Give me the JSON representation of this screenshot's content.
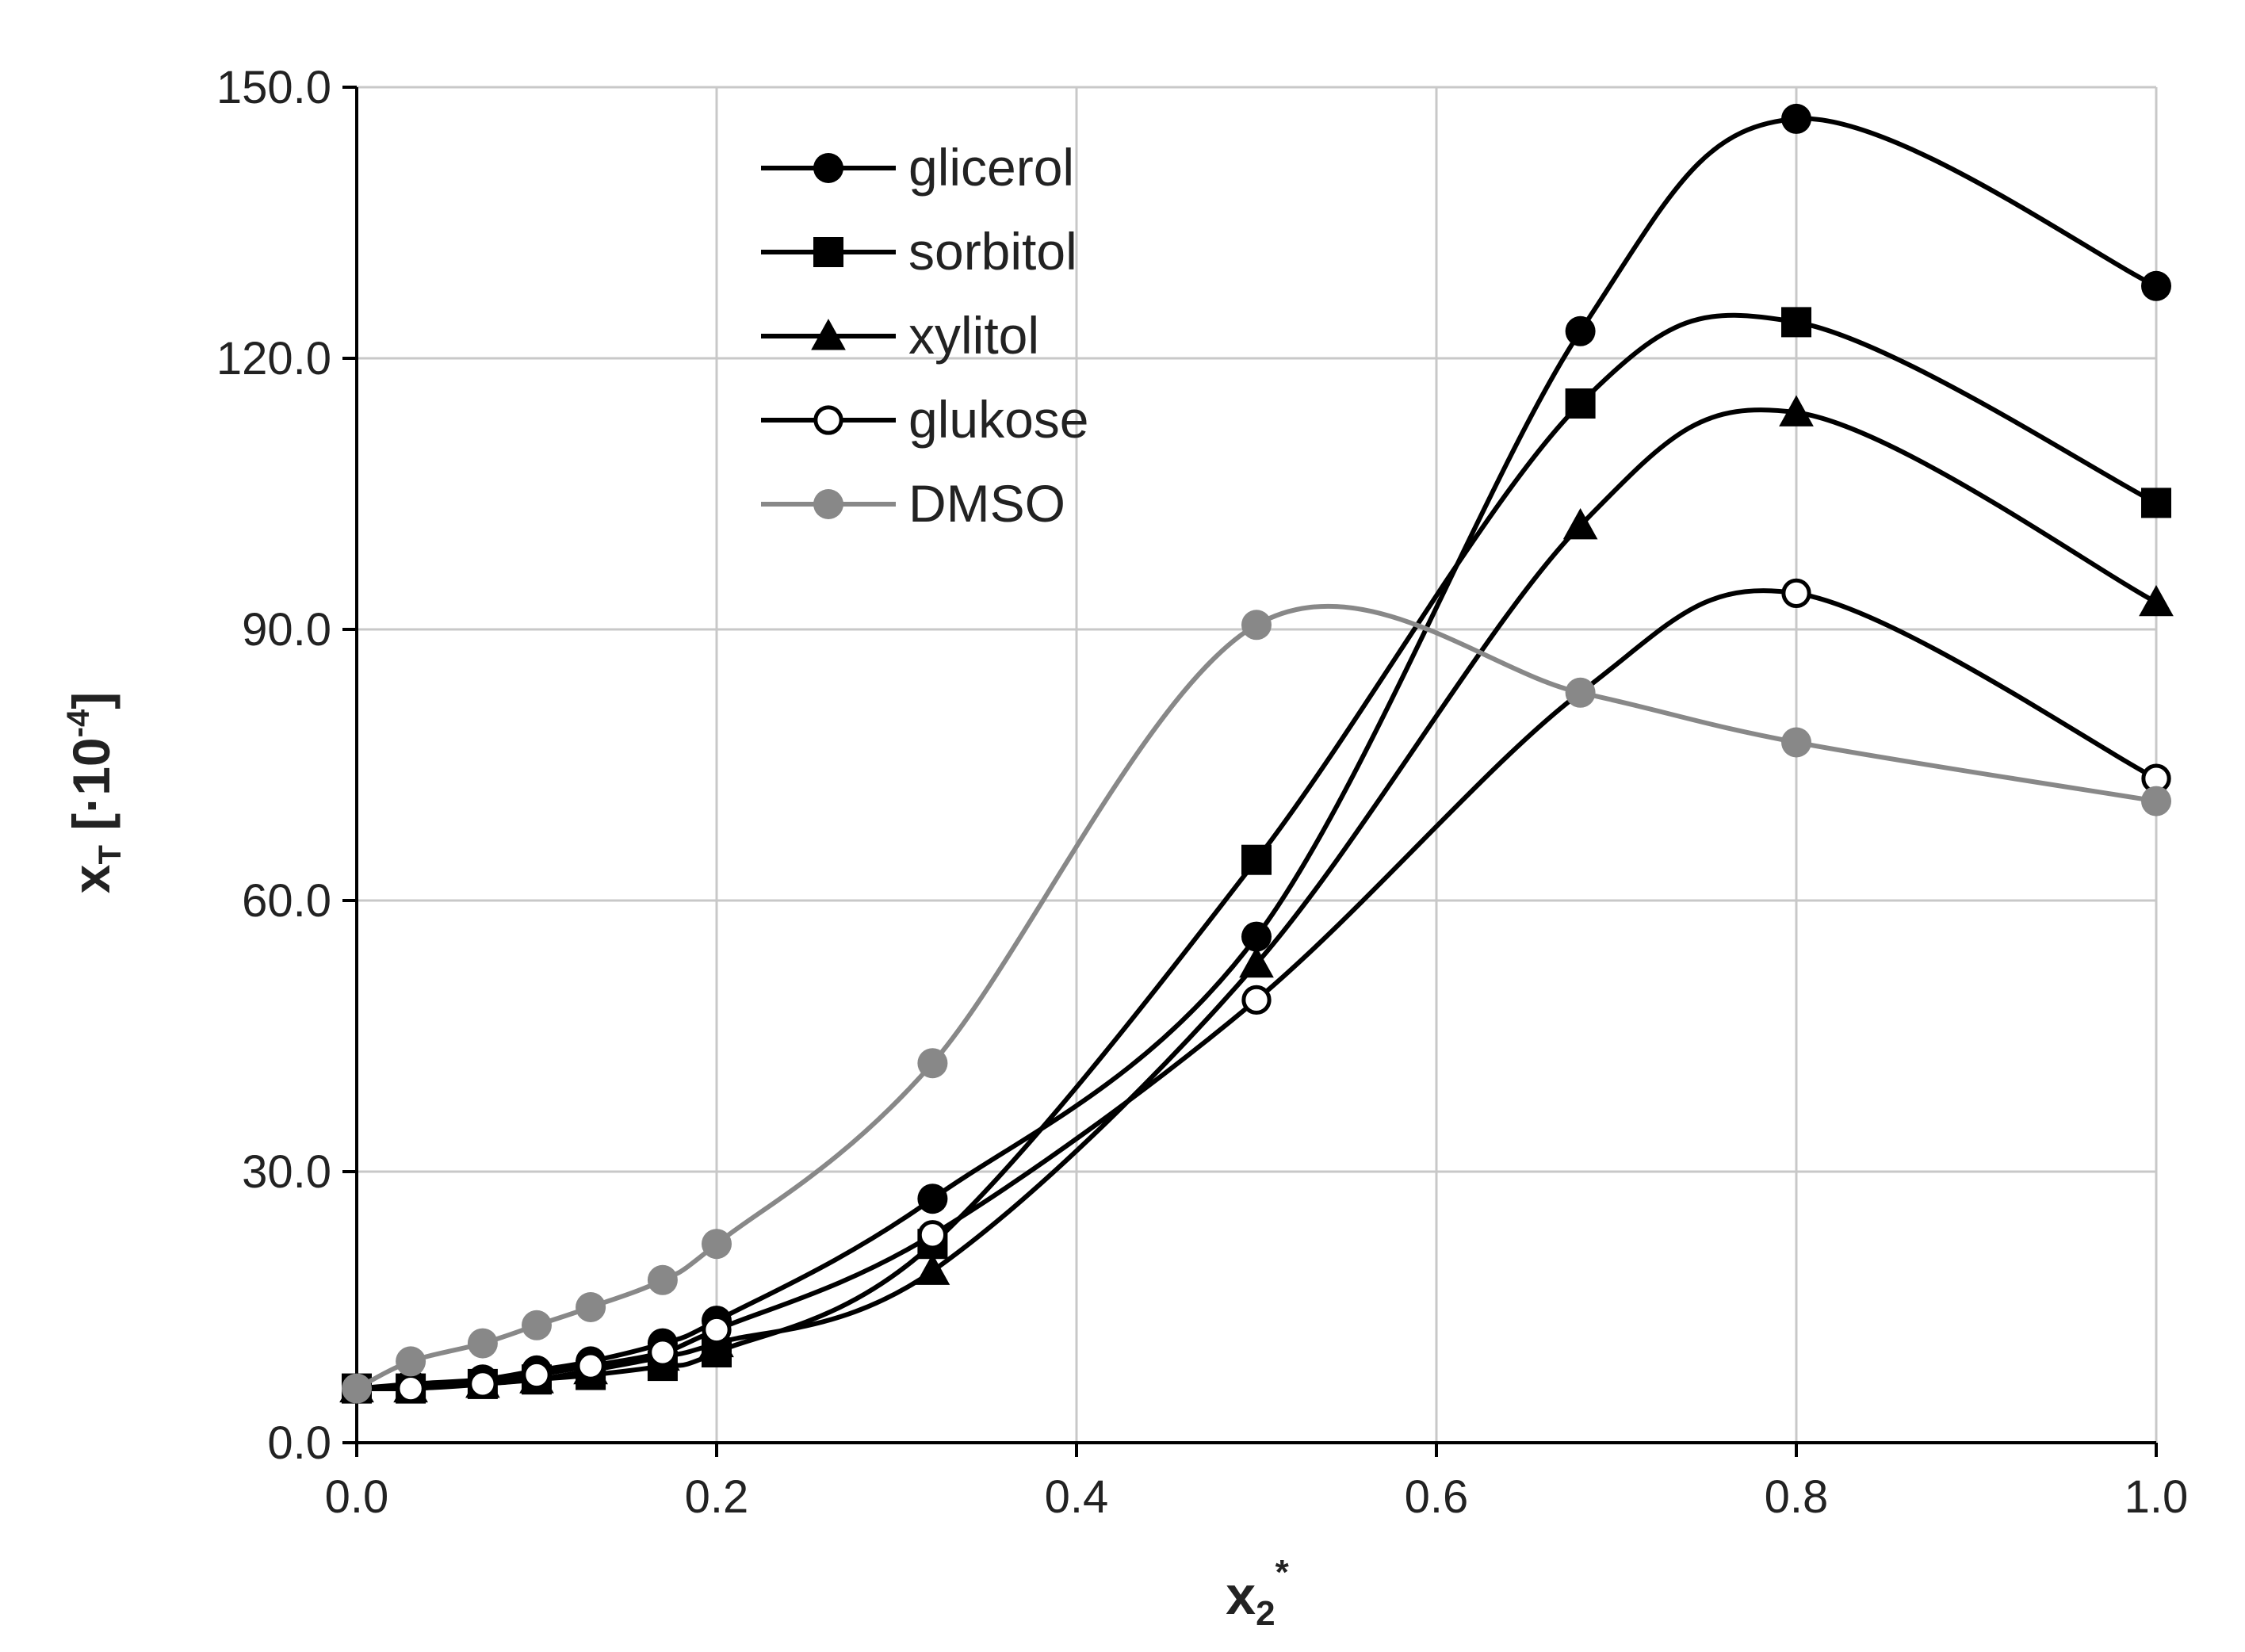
{
  "chart_data": {
    "type": "line",
    "title": "",
    "xlabel": {
      "main": "x",
      "sub": "2",
      "sup": "*"
    },
    "ylabel": {
      "main": "x",
      "sub": "T",
      "unit_prefix": " [·10",
      "unit_sup": "-4",
      "unit_suffix": "]"
    },
    "xlim": [
      0.0,
      1.0
    ],
    "ylim": [
      0.0,
      150.0
    ],
    "xticks": [
      0.0,
      0.2,
      0.4,
      0.6,
      0.8,
      1.0
    ],
    "yticks": [
      0.0,
      30.0,
      60.0,
      90.0,
      120.0,
      150.0
    ],
    "xtick_labels": [
      "0.0",
      "0.2",
      "0.4",
      "0.6",
      "0.8",
      "1.0"
    ],
    "ytick_labels": [
      "0.0",
      "30.0",
      "60.0",
      "90.0",
      "120.0",
      "150.0"
    ],
    "grid": true,
    "legend_position": "top-left",
    "series": [
      {
        "name": "glicerol",
        "marker": "circle-filled",
        "color": "#000000",
        "x": [
          0.0,
          0.03,
          0.07,
          0.1,
          0.13,
          0.17,
          0.2,
          0.32,
          0.5,
          0.68,
          0.8,
          1.0
        ],
        "y": [
          6.0,
          6.5,
          7.0,
          8.0,
          9.0,
          11.0,
          13.5,
          27.0,
          56.0,
          123.0,
          146.5,
          128.0
        ]
      },
      {
        "name": "sorbitol",
        "marker": "square-filled",
        "color": "#000000",
        "x": [
          0.0,
          0.03,
          0.07,
          0.1,
          0.13,
          0.17,
          0.2,
          0.32,
          0.5,
          0.68,
          0.8,
          1.0
        ],
        "y": [
          6.0,
          6.0,
          6.5,
          7.0,
          7.5,
          8.5,
          10.0,
          22.0,
          64.5,
          115.0,
          124.0,
          104.0
        ]
      },
      {
        "name": "xylitol",
        "marker": "triangle-filled",
        "color": "#000000",
        "x": [
          0.0,
          0.03,
          0.07,
          0.1,
          0.13,
          0.17,
          0.2,
          0.32,
          0.5,
          0.68,
          0.8,
          1.0
        ],
        "y": [
          6.0,
          6.0,
          6.5,
          7.0,
          8.0,
          9.5,
          11.0,
          19.0,
          53.0,
          101.5,
          114.0,
          93.0
        ]
      },
      {
        "name": "glukose",
        "marker": "circle-open",
        "color": "#000000",
        "x": [
          0.0,
          0.03,
          0.07,
          0.1,
          0.13,
          0.17,
          0.2,
          0.32,
          0.5,
          0.68,
          0.8,
          1.0
        ],
        "y": [
          6.0,
          6.0,
          6.5,
          7.5,
          8.5,
          10.0,
          12.5,
          23.0,
          49.0,
          83.0,
          94.0,
          73.5
        ]
      },
      {
        "name": "DMSO",
        "marker": "circle-filled",
        "color": "#888888",
        "x": [
          0.0,
          0.03,
          0.07,
          0.1,
          0.13,
          0.17,
          0.2,
          0.32,
          0.5,
          0.68,
          0.8,
          1.0
        ],
        "y": [
          6.0,
          9.0,
          11.0,
          13.0,
          15.0,
          18.0,
          22.0,
          42.0,
          90.5,
          83.0,
          77.5,
          71.0
        ]
      }
    ]
  }
}
